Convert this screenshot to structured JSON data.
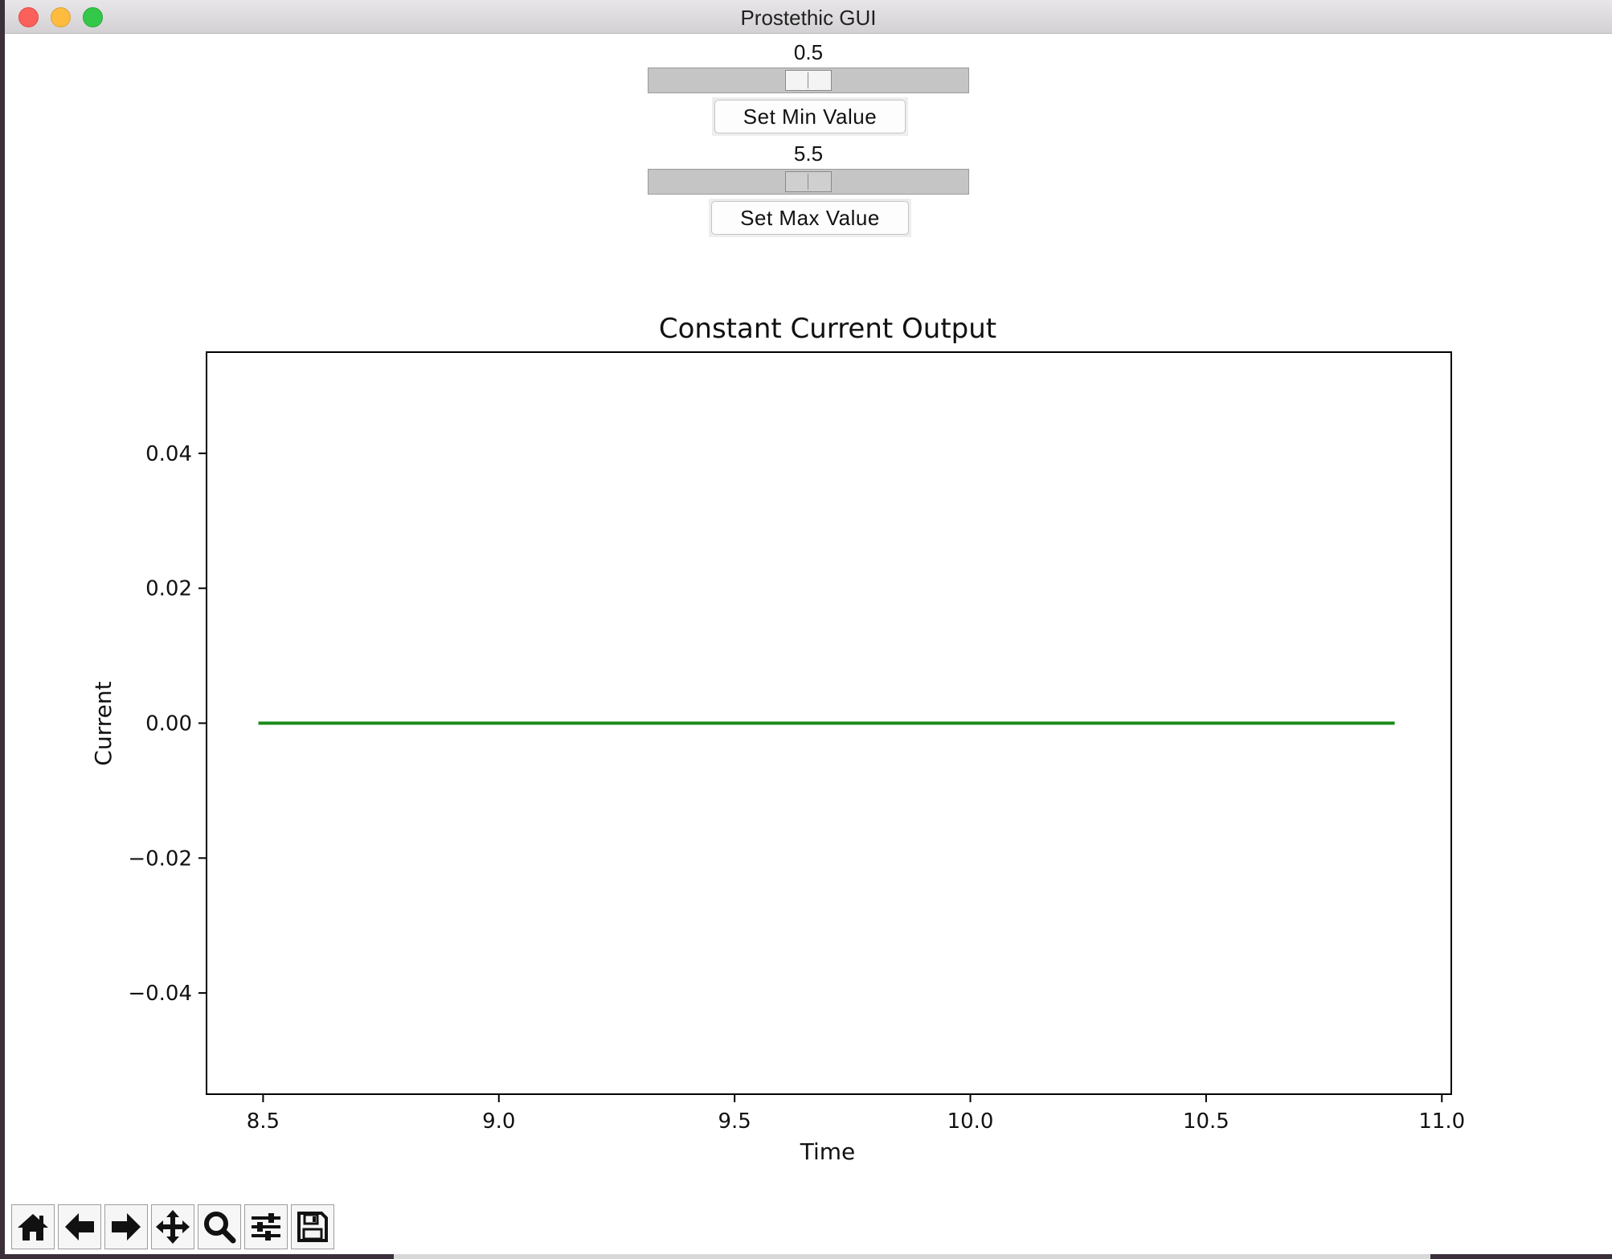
{
  "window": {
    "title": "Prostethic GUI"
  },
  "controls": {
    "min": {
      "value_label": "0.5",
      "button_label": "Set Min Value",
      "slider_value": 0.5
    },
    "max": {
      "value_label": "5.5",
      "button_label": "Set Max Value",
      "slider_value": 5.5
    }
  },
  "toolbar": {
    "tools": [
      {
        "name": "home-icon"
      },
      {
        "name": "back-arrow-icon"
      },
      {
        "name": "forward-arrow-icon"
      },
      {
        "name": "pan-icon"
      },
      {
        "name": "zoom-icon"
      },
      {
        "name": "configure-subplots-icon"
      },
      {
        "name": "save-icon"
      }
    ]
  },
  "chart_data": {
    "type": "line",
    "title": "Constant Current Output",
    "xlabel": "Time",
    "ylabel": "Current",
    "xlim": [
      8.38,
      11.02
    ],
    "ylim": [
      -0.055,
      0.055
    ],
    "x_ticks": [
      8.5,
      9.0,
      9.5,
      10.0,
      10.5,
      11.0
    ],
    "x_tick_labels": [
      "8.5",
      "9.0",
      "9.5",
      "10.0",
      "10.5",
      "11.0"
    ],
    "y_ticks": [
      0.04,
      0.02,
      0.0,
      -0.02,
      -0.04
    ],
    "y_tick_labels": [
      "0.04",
      "0.02",
      "0.00",
      "−0.02",
      "−0.04"
    ],
    "grid": false,
    "series": [
      {
        "color": "#1a8a1a",
        "x": [
          8.49,
          10.9
        ],
        "y": [
          0.0,
          0.0
        ]
      }
    ]
  }
}
